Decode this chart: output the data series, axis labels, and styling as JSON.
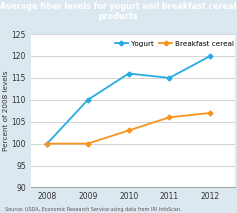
{
  "title": "Average fiber levels for yogurt and breakfast cereal products",
  "ylabel": "Percent of 2008 levels",
  "source": "Source: USDA, Economic Research Service using data from IRI InfoScan.",
  "years": [
    2008,
    2009,
    2010,
    2011,
    2012
  ],
  "yogurt": [
    100,
    110,
    116,
    115,
    120
  ],
  "cereal": [
    100,
    100,
    103,
    106,
    107
  ],
  "yogurt_color": "#29abe2",
  "cereal_color": "#f7941d",
  "title_bg": "#3a5f80",
  "title_color": "#ffffff",
  "fig_bg": "#dce8f0",
  "plot_bg": "#ffffff",
  "grid_color": "#cccccc",
  "ylim": [
    90,
    125
  ],
  "yticks": [
    90,
    95,
    100,
    105,
    110,
    115,
    120,
    125
  ],
  "legend_yogurt": "Yogurt",
  "legend_cereal": "Breakfast cereal"
}
